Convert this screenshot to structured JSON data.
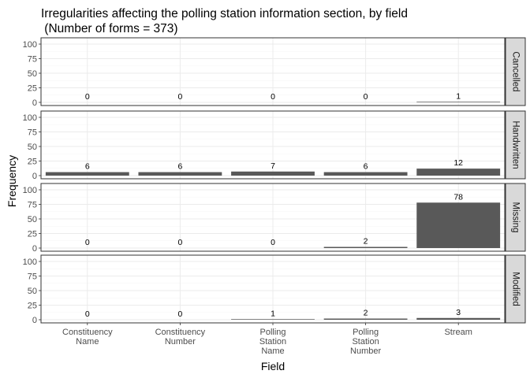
{
  "chart_data": {
    "type": "bar",
    "title": "Irregularities affecting the polling station information section, by field",
    "subtitle": " (Number of forms = 373)",
    "xlabel": "Field",
    "ylabel": "Frequency",
    "categories": [
      [
        "Constituency",
        "Name"
      ],
      [
        "Constituency",
        "Number"
      ],
      [
        "Polling",
        "Station",
        "Name"
      ],
      [
        "Polling",
        "Station",
        "Number"
      ],
      [
        "Stream"
      ]
    ],
    "ylim": [
      0,
      100
    ],
    "yticks": [
      0,
      25,
      50,
      75,
      100
    ],
    "grid": true,
    "facets": [
      {
        "name": "Cancelled",
        "values": [
          0,
          0,
          0,
          0,
          1
        ]
      },
      {
        "name": "Handwritten",
        "values": [
          6,
          6,
          7,
          6,
          12
        ]
      },
      {
        "name": "Missing",
        "values": [
          0,
          0,
          0,
          2,
          78
        ]
      },
      {
        "name": "Modified",
        "values": [
          0,
          0,
          1,
          2,
          3
        ]
      }
    ],
    "colors": {
      "bar": "#595959",
      "panel_border": "#333333",
      "strip_fill": "#d9d9d9",
      "grid_major": "#ebebeb",
      "grid_minor": "#f5f5f5"
    }
  }
}
